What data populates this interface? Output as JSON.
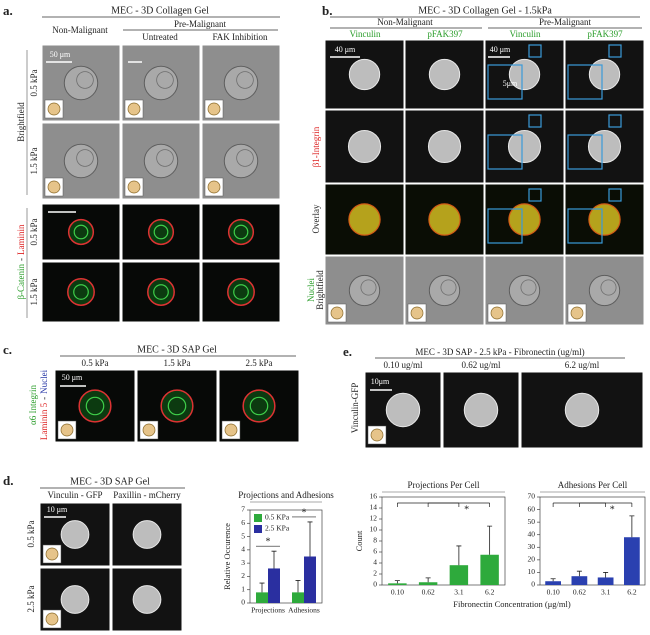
{
  "figure": {
    "a": {
      "label": "a.",
      "title": "MEC - 3D Collagen Gel",
      "non_malignant": "Non-Malignant",
      "pre_malignant": "Pre-Malignant",
      "untreated": "Untreated",
      "fak_inhibition": "FAK Inhibition",
      "scale_bar": "50 μm",
      "rows": [
        "0.5 kPa",
        "1.5 kPa",
        "0.5 kPa",
        "1.5 kPa"
      ],
      "brightfield": "Brightfield",
      "stain": [
        "β-Catenin",
        "-",
        "Laminin"
      ]
    },
    "b": {
      "label": "b.",
      "title": "MEC - 3D Collagen Gel - 1.5kPa",
      "non_malignant": "Non-Malignant",
      "pre_malignant": "Pre-Malignant",
      "columns": [
        "Vinculin",
        "pFAK397",
        "Vinculin",
        "pFAK397"
      ],
      "scale_bars": [
        "40 μm",
        "40 μm",
        "5μm"
      ],
      "rows": [
        "β1-Integrin",
        "Overlay",
        "Nuclei",
        "Brightfield"
      ]
    },
    "c": {
      "label": "c.",
      "title": "MEC - 3D SAP Gel",
      "columns": [
        "0.5 kPa",
        "1.5 kPa",
        "2.5 kPa"
      ],
      "scale_bar": "50 μm",
      "stain_left": "α6 Integrin",
      "stain": [
        "Laminin 5",
        "-",
        "Nuclei"
      ]
    },
    "d": {
      "label": "d.",
      "title": "MEC - 3D SAP Gel",
      "columns": [
        "Vinculin - GFP",
        "Paxillin - mCherry"
      ],
      "scale_bar": "10 μm",
      "rows": [
        "0.5 kPa",
        "2.5 kPa"
      ]
    },
    "e": {
      "label": "e.",
      "title": "MEC - 3D SAP - 2.5 kPa - Fibronectin (ug/ml)",
      "columns": [
        "0.10 ug/ml",
        "0.62 ug/ml",
        "6.2 ug/ml"
      ],
      "scale_bar": "10μm",
      "row": "Vinculin-GFP"
    }
  },
  "chart_data": [
    {
      "type": "bar",
      "title": "Projections and Adhesions",
      "y_label": "Relative Occurence",
      "categories": [
        "Projections",
        "Adhesions"
      ],
      "series": [
        {
          "name": "0.5 KPa",
          "color": "#2eaa3c",
          "values": [
            0.8,
            0.8
          ],
          "errors": [
            0.7,
            0.9
          ]
        },
        {
          "name": "2.5 KPa",
          "color": "#2a2fa0",
          "values": [
            2.6,
            3.5
          ],
          "errors": [
            1.3,
            2.6
          ]
        }
      ],
      "ylim": [
        0,
        7
      ],
      "yticks": [
        0,
        1,
        2,
        3,
        4,
        5,
        6,
        7
      ],
      "annotations": [
        "*",
        "*"
      ]
    },
    {
      "type": "bar",
      "title": "Projections Per Cell",
      "y_label": "Count",
      "x_label": "Fibronectin Concentration (μg/ml)",
      "categories": [
        "0.10",
        "0.62",
        "3.1",
        "6.2"
      ],
      "values": [
        0.3,
        0.5,
        3.6,
        5.5
      ],
      "errors": [
        0.5,
        0.8,
        3.5,
        5.2
      ],
      "color": "#2eaa3c",
      "ylim": [
        0,
        16
      ],
      "yticks": [
        0,
        2,
        4,
        6,
        8,
        10,
        12,
        14,
        16
      ],
      "annotations": [
        "*"
      ]
    },
    {
      "type": "bar",
      "title": "Adhesions Per Cell",
      "categories": [
        "0.10",
        "0.62",
        "3.1",
        "6.2"
      ],
      "values": [
        3,
        7,
        6,
        38
      ],
      "errors": [
        2,
        4,
        4,
        17
      ],
      "color": "#2a40b0",
      "ylim": [
        0,
        70
      ],
      "yticks": [
        0,
        10,
        20,
        30,
        40,
        50,
        60,
        70
      ],
      "annotations": [
        "*"
      ]
    }
  ]
}
